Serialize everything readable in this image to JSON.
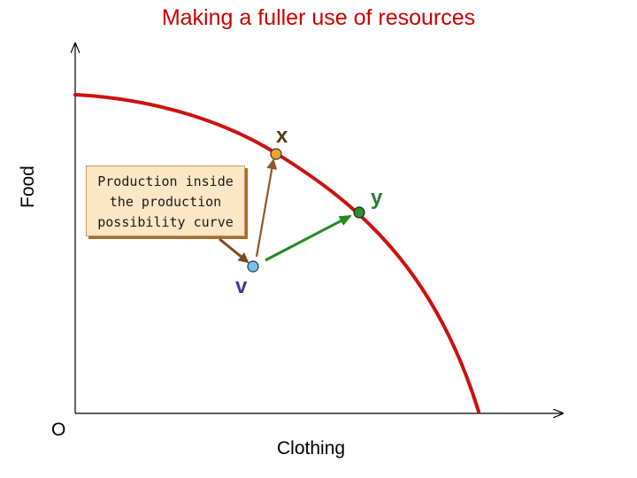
{
  "title": "Making a fuller use of resources",
  "axes": {
    "y_label": "Food",
    "x_label": "Clothing",
    "origin_label": "O"
  },
  "callout": {
    "text": "Production inside the production possibility curve"
  },
  "points": [
    {
      "id": "x",
      "label": "x",
      "color": "#f0a030"
    },
    {
      "id": "y",
      "label": "y",
      "color": "#2e8b2e"
    },
    {
      "id": "v",
      "label": "v",
      "color": "#6ec6f0"
    }
  ],
  "colors": {
    "curve": "#cc1111",
    "title": "#cc0000",
    "arrow_to_x": "#8b5a2b",
    "arrow_to_y": "#228b22",
    "callout_pointer": "#7a4a1e"
  }
}
